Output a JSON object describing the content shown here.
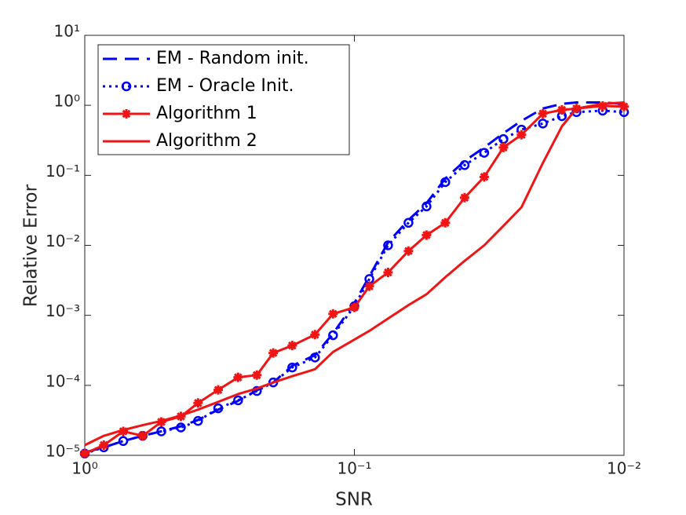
{
  "chart_data": {
    "type": "line",
    "xlabel": "SNR",
    "ylabel": "Relative Error",
    "log_x": true,
    "log_y": true,
    "xlim": [
      1,
      0.01
    ],
    "ylim": [
      1e-05,
      10
    ],
    "xticks": [
      {
        "value": 1,
        "label": "10⁰"
      },
      {
        "value": 0.1,
        "label": "10⁻¹"
      },
      {
        "value": 0.01,
        "label": "10⁻²"
      }
    ],
    "yticks": [
      {
        "value": 1e-05,
        "label": "10⁻⁵"
      },
      {
        "value": 0.0001,
        "label": "10⁻⁴"
      },
      {
        "value": 0.001,
        "label": "10⁻³"
      },
      {
        "value": 0.01,
        "label": "10⁻²"
      },
      {
        "value": 0.1,
        "label": "10⁻¹"
      },
      {
        "value": 1,
        "label": "10⁰"
      },
      {
        "value": 10,
        "label": "10¹"
      }
    ],
    "legend": "upper left",
    "x": [
      1.0,
      0.85,
      0.72,
      0.61,
      0.52,
      0.44,
      0.38,
      0.32,
      0.27,
      0.23,
      0.2,
      0.17,
      0.14,
      0.12,
      0.1,
      0.088,
      0.075,
      0.063,
      0.054,
      0.046,
      0.039,
      0.033,
      0.028,
      0.024,
      0.02,
      0.017,
      0.015,
      0.012,
      0.01
    ],
    "series": [
      {
        "name": "EM - Random init.",
        "color": "#0000ff",
        "dash": "dashed",
        "marker": "none",
        "values": [
          1.1e-05,
          1.3e-05,
          1.6e-05,
          1.9e-05,
          2.2e-05,
          2.6e-05,
          3.2e-05,
          4.5e-05,
          6e-05,
          8.5e-05,
          0.00011,
          0.00019,
          0.00027,
          0.00055,
          0.0015,
          0.0036,
          0.011,
          0.023,
          0.04,
          0.09,
          0.16,
          0.25,
          0.4,
          0.6,
          0.9,
          1.05,
          1.1,
          1.1,
          1.05
        ]
      },
      {
        "name": "EM - Oracle Init.",
        "color": "#0000ff",
        "dash": "dotted",
        "marker": "circle",
        "values": [
          1.06e-05,
          1.3e-05,
          1.6e-05,
          1.9e-05,
          2.2e-05,
          2.5e-05,
          3.1e-05,
          4.7e-05,
          6.1e-05,
          8.3e-05,
          0.00011,
          0.00018,
          0.00025,
          0.00052,
          0.00135,
          0.0033,
          0.01,
          0.021,
          0.036,
          0.08,
          0.14,
          0.21,
          0.33,
          0.45,
          0.55,
          0.7,
          0.8,
          0.84,
          0.8
        ]
      },
      {
        "name": "Algorithm 1",
        "color": "#f01414",
        "dash": "solid",
        "marker": "star",
        "values": [
          1.06e-05,
          1.4e-05,
          2.2e-05,
          1.9e-05,
          3e-05,
          3.6e-05,
          5.6e-05,
          8.6e-05,
          0.00013,
          0.00014,
          0.00029,
          0.00037,
          0.00053,
          0.00105,
          0.0013,
          0.0026,
          0.0041,
          0.0083,
          0.014,
          0.021,
          0.048,
          0.095,
          0.25,
          0.38,
          0.76,
          0.86,
          0.9,
          0.98,
          0.96
        ]
      },
      {
        "name": "Algorithm 2",
        "color": "#f01414",
        "dash": "solid",
        "marker": "none",
        "values": [
          1.4e-05,
          1.9e-05,
          2.3e-05,
          2.7e-05,
          3.1e-05,
          3.7e-05,
          4.5e-05,
          5.8e-05,
          7.5e-05,
          9e-05,
          0.00011,
          0.000135,
          0.00017,
          0.0003,
          0.00045,
          0.0006,
          0.0009,
          0.0014,
          0.002,
          0.0035,
          0.006,
          0.01,
          0.019,
          0.035,
          0.15,
          0.5,
          0.9,
          1.05,
          1.1
        ]
      }
    ]
  }
}
